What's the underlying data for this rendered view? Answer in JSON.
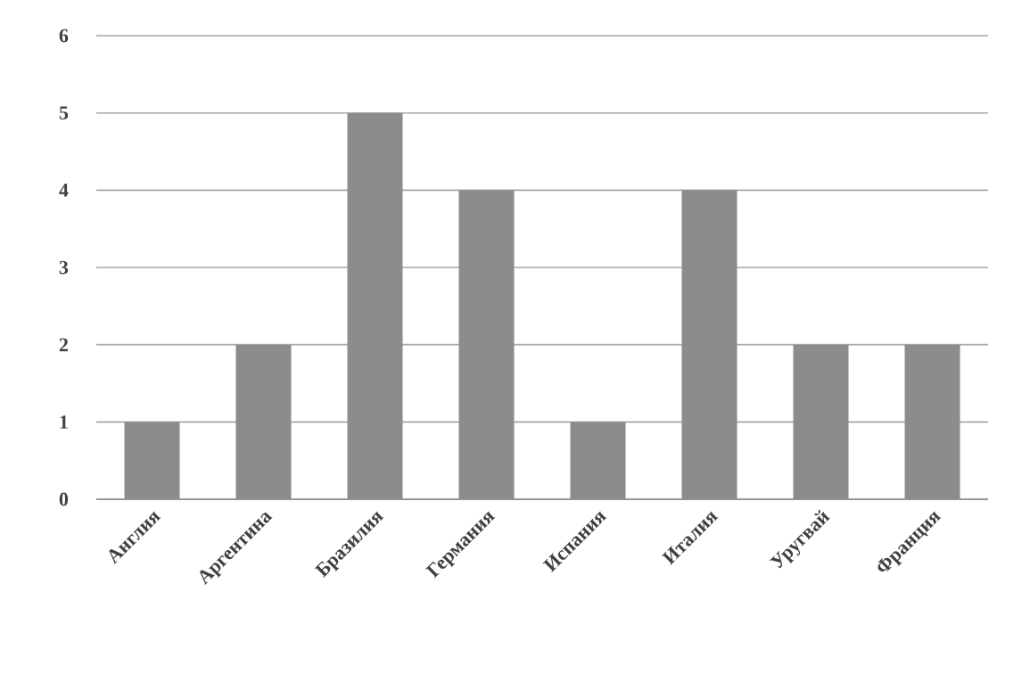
{
  "chart_data": {
    "type": "bar",
    "categories": [
      "Англия",
      "Аргентина",
      "Бразилия",
      "Германия",
      "Испания",
      "Италия",
      "Уругвай",
      "Франция"
    ],
    "values": [
      1,
      2,
      5,
      4,
      1,
      4,
      2,
      2
    ],
    "color": "#8c8c8c",
    "ylim": [
      0,
      6
    ],
    "yticks": [
      0,
      1,
      2,
      3,
      4,
      5,
      6
    ],
    "grid": "y"
  }
}
